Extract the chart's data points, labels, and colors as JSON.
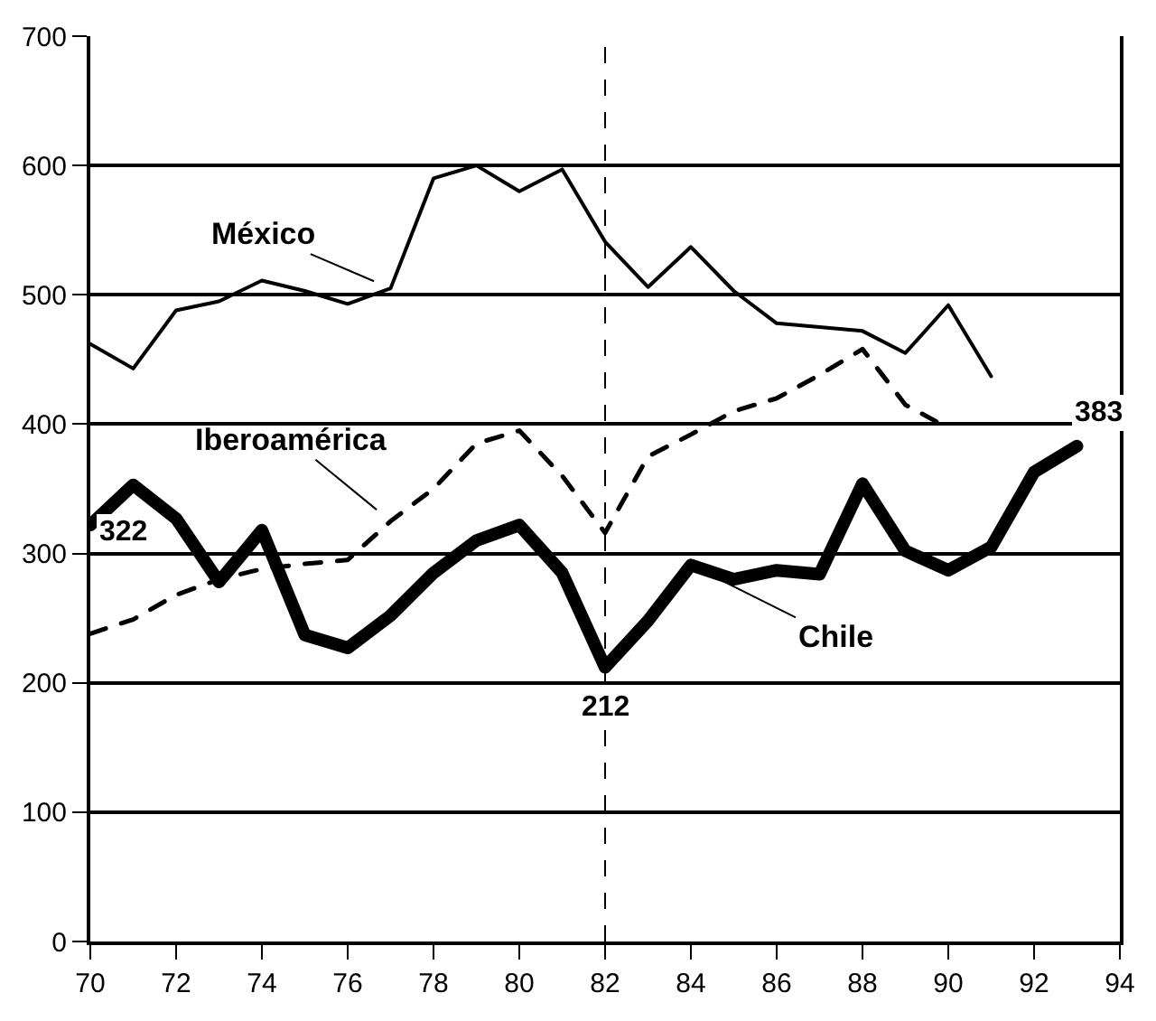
{
  "chart_data": {
    "type": "line",
    "x": [
      70,
      71,
      72,
      73,
      74,
      75,
      76,
      77,
      78,
      79,
      80,
      81,
      82,
      83,
      84,
      85,
      86,
      87,
      88,
      89,
      90,
      91,
      92,
      93
    ],
    "series": [
      {
        "name": "México",
        "color": "#000000",
        "line_style": "solid",
        "values": [
          462,
          443,
          488,
          495,
          511,
          503,
          493,
          505,
          590,
          600,
          580,
          597,
          541,
          506,
          537,
          503,
          478,
          475,
          472,
          455,
          492,
          437,
          null,
          null
        ]
      },
      {
        "name": "Iberoamérica",
        "color": "#000000",
        "line_style": "dashed",
        "values": [
          238,
          249,
          268,
          280,
          288,
          292,
          295,
          325,
          350,
          385,
          395,
          360,
          316,
          375,
          392,
          410,
          420,
          438,
          458,
          415,
          397,
          null,
          null,
          null
        ]
      },
      {
        "name": "Chile",
        "color": "#000000",
        "line_style": "solid",
        "values": [
          322,
          353,
          327,
          278,
          318,
          237,
          227,
          252,
          285,
          310,
          322,
          285,
          212,
          248,
          291,
          280,
          287,
          284,
          354,
          302,
          287,
          305,
          363,
          383
        ]
      }
    ],
    "annotations": [
      {
        "text": "322",
        "x": 70,
        "y": 322
      },
      {
        "text": "212",
        "x": 82,
        "y": 212
      },
      {
        "text": "383",
        "x": 93,
        "y": 383
      }
    ],
    "ref_lines": [
      {
        "axis": "x",
        "value": 82,
        "color": "#000000",
        "line_style": "dashed"
      }
    ],
    "xlim": [
      70,
      94
    ],
    "xticks": [
      70,
      72,
      74,
      76,
      78,
      80,
      82,
      84,
      86,
      88,
      90,
      92,
      94
    ],
    "ylim": [
      0,
      700
    ],
    "yticks": [
      0,
      100,
      200,
      300,
      400,
      500,
      600,
      700
    ],
    "grid": "y",
    "legend": false,
    "marker": "none"
  }
}
